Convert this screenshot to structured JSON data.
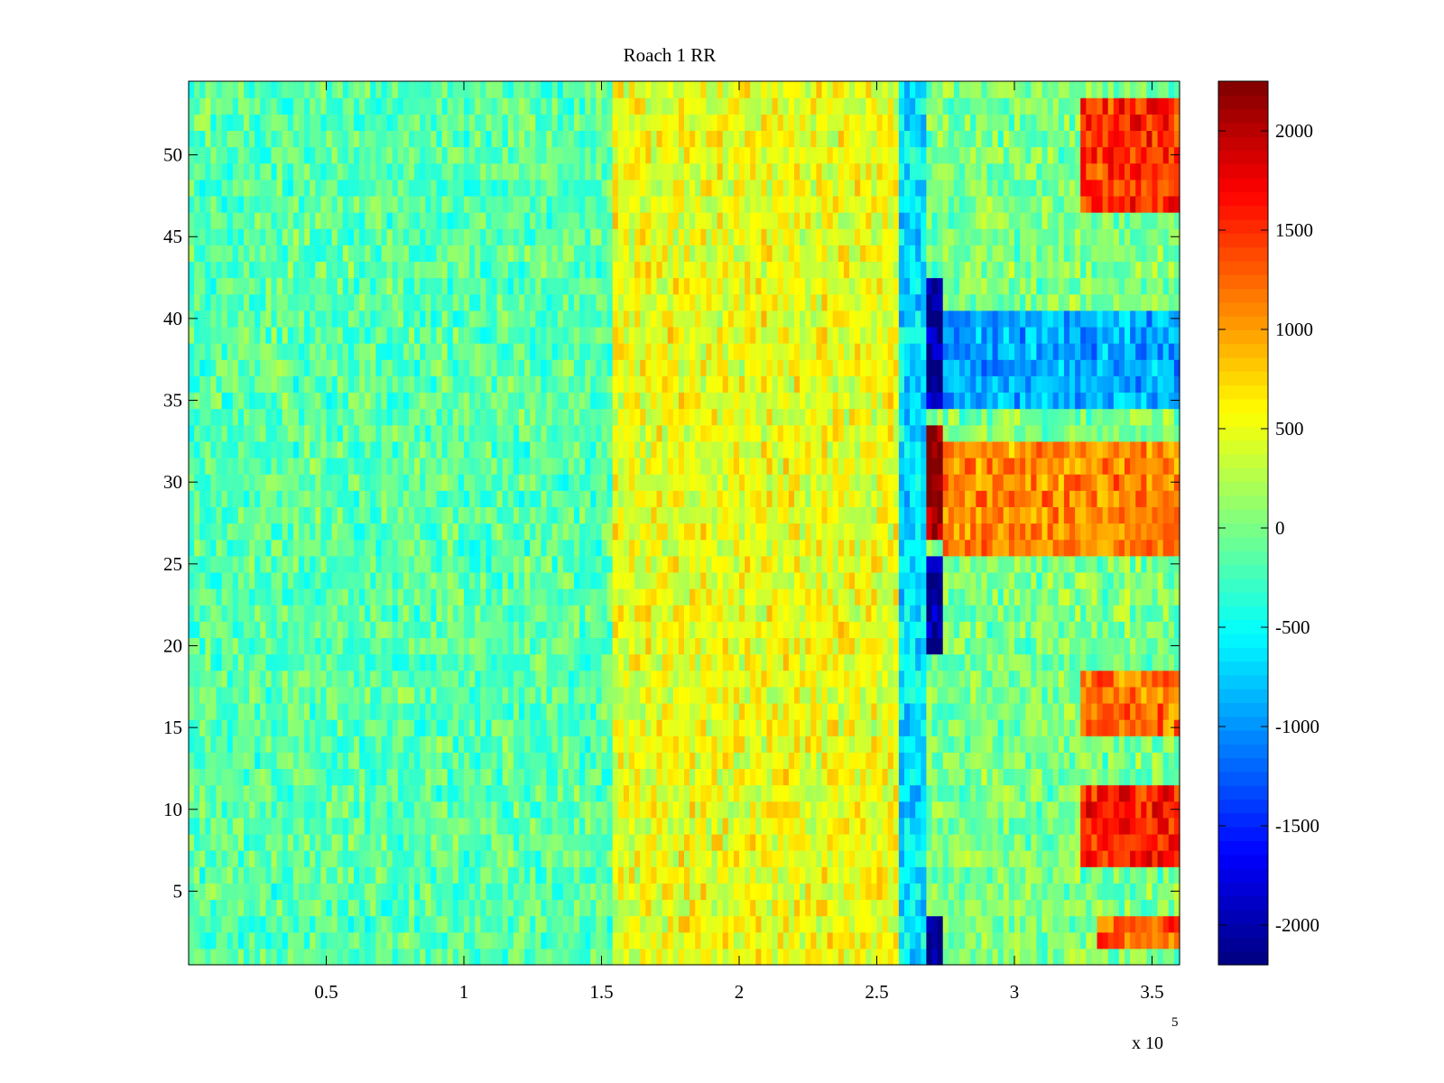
{
  "chart_data": {
    "type": "heatmap",
    "title": "Roach 1 RR",
    "xlabel": "",
    "ylabel": "",
    "colormap": "jet",
    "x_range": [
      0,
      360000
    ],
    "y_range": [
      0.5,
      54.5
    ],
    "rows": 54,
    "x_ticks": [
      50000,
      100000,
      150000,
      200000,
      250000,
      300000,
      350000
    ],
    "x_tick_labels": [
      "0.5",
      "1",
      "1.5",
      "2",
      "2.5",
      "3",
      "3.5"
    ],
    "x_exponent": {
      "base": "x 10",
      "power": "5"
    },
    "y_ticks": [
      5,
      10,
      15,
      20,
      25,
      30,
      35,
      40,
      45,
      50
    ],
    "y_tick_labels": [
      "5",
      "10",
      "15",
      "20",
      "25",
      "30",
      "35",
      "40",
      "45",
      "50"
    ],
    "colorbar": {
      "range": [
        -2200,
        2250
      ],
      "ticks": [
        -2000,
        -1500,
        -1000,
        -500,
        0,
        500,
        1000,
        1500,
        2000
      ],
      "tick_labels": [
        "-2000",
        "-1500",
        "-1000",
        "-500",
        "0",
        "500",
        "1000",
        "1500",
        "2000"
      ]
    },
    "features": [
      {
        "x": [
          0,
          155000
        ],
        "rows": [
          1,
          54
        ],
        "level": -150
      },
      {
        "x": [
          155000,
          258000
        ],
        "rows": [
          1,
          54
        ],
        "level": 500
      },
      {
        "x": [
          258000,
          268000
        ],
        "rows": [
          1,
          54
        ],
        "level": -650
      },
      {
        "x": [
          268000,
          275000
        ],
        "rows": [
          35,
          42
        ],
        "level": -2100
      },
      {
        "x": [
          268000,
          275000
        ],
        "rows": [
          20,
          25
        ],
        "level": -2100
      },
      {
        "x": [
          268000,
          275000
        ],
        "rows": [
          1,
          3
        ],
        "level": -2100
      },
      {
        "x": [
          268000,
          275000
        ],
        "rows": [
          27,
          33
        ],
        "level": 2200
      },
      {
        "x": [
          275000,
          360000
        ],
        "rows": [
          35,
          40
        ],
        "level": -900
      },
      {
        "x": [
          275000,
          360000
        ],
        "rows": [
          26,
          32
        ],
        "level": 1100
      },
      {
        "x": [
          325000,
          360000
        ],
        "rows": [
          47,
          53
        ],
        "level": 1500
      },
      {
        "x": [
          325000,
          360000
        ],
        "rows": [
          7,
          11
        ],
        "level": 1600
      },
      {
        "x": [
          325000,
          360000
        ],
        "rows": [
          15,
          18
        ],
        "level": 1200
      },
      {
        "x": [
          330000,
          360000
        ],
        "rows": [
          2,
          3
        ],
        "level": 1300
      }
    ]
  }
}
